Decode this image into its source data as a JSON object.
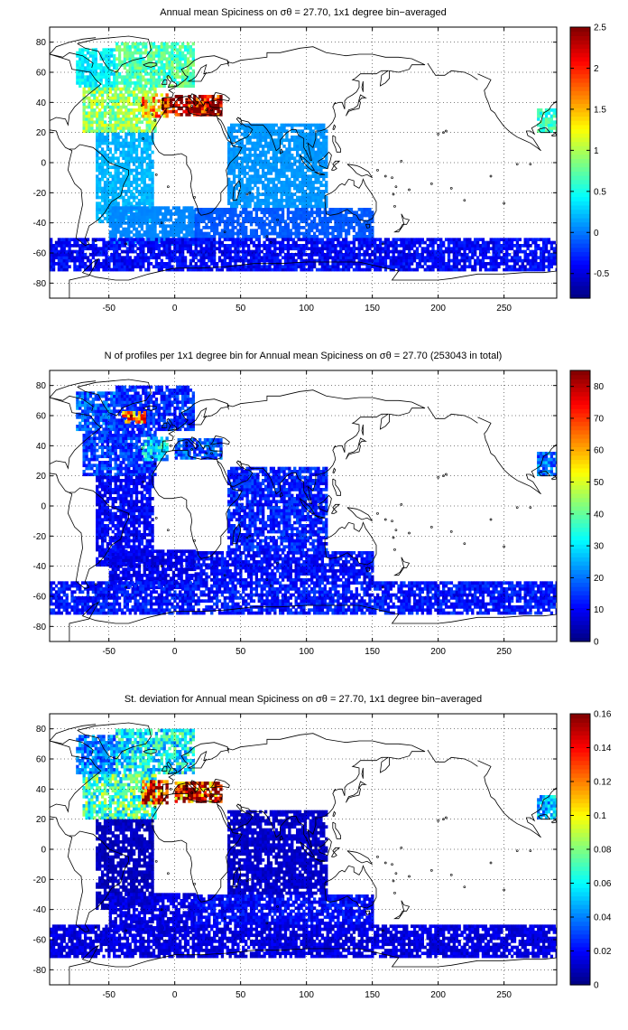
{
  "chart_data": [
    {
      "type": "heatmap",
      "title": "Annual mean Spiciness on σθ = 27.70, 1x1 degree bin−averaged",
      "xlabel": "",
      "ylabel": "",
      "xlim": [
        -95,
        290
      ],
      "ylim": [
        -90,
        90
      ],
      "xticks": [
        -50,
        0,
        50,
        100,
        150,
        200,
        250
      ],
      "yticks": [
        -80,
        -60,
        -40,
        -20,
        0,
        20,
        40,
        60,
        80
      ],
      "grid": true,
      "colorbar": {
        "range": [
          -0.8,
          2.5
        ],
        "ticks": [
          -0.5,
          0,
          0.5,
          1,
          1.5,
          2,
          2.5
        ],
        "colormap": "jet"
      },
      "field": [
        {
          "lon_min": -75,
          "lon_max": -45,
          "lat_min": 50,
          "lat_max": 75,
          "value": 0.4
        },
        {
          "lon_min": -45,
          "lon_max": 15,
          "lat_min": 50,
          "lat_max": 80,
          "value": 0.7
        },
        {
          "lon_min": -70,
          "lon_max": -15,
          "lat_min": 20,
          "lat_max": 50,
          "value": 0.9
        },
        {
          "lon_min": -25,
          "lon_max": -5,
          "lat_min": 30,
          "lat_max": 45,
          "value": 1.5
        },
        {
          "lon_min": -10,
          "lon_max": 0,
          "lat_min": 33,
          "lat_max": 42,
          "value": 2.3
        },
        {
          "lon_min": 0,
          "lon_max": 36,
          "lat_min": 31,
          "lat_max": 44,
          "value": 2.5
        },
        {
          "lon_min": -60,
          "lon_max": -17,
          "lat_min": -40,
          "lat_max": 20,
          "value": 0.2
        },
        {
          "lon_min": -50,
          "lon_max": 15,
          "lat_min": -55,
          "lat_max": -30,
          "value": 0.05
        },
        {
          "lon_min": 40,
          "lon_max": 115,
          "lat_min": -30,
          "lat_max": 25,
          "value": 0.1
        },
        {
          "lon_min": 15,
          "lon_max": 150,
          "lat_min": -50,
          "lat_max": -30,
          "value": -0.1
        },
        {
          "lon_min": -95,
          "lon_max": 290,
          "lat_min": -72,
          "lat_max": -50,
          "value": -0.4
        },
        {
          "lon_min": 275,
          "lon_max": 290,
          "lat_min": 20,
          "lat_max": 35,
          "value": 0.6
        }
      ]
    },
    {
      "type": "heatmap",
      "title": "N of profiles per 1x1 degree bin for Annual mean Spiciness on σθ = 27.70 (253043 in total)",
      "xlabel": "",
      "ylabel": "",
      "xlim": [
        -95,
        290
      ],
      "ylim": [
        -90,
        90
      ],
      "xticks": [
        -50,
        0,
        50,
        100,
        150,
        200,
        250
      ],
      "yticks": [
        -80,
        -60,
        -40,
        -20,
        0,
        20,
        40,
        60,
        80
      ],
      "grid": true,
      "colorbar": {
        "range": [
          0,
          85
        ],
        "ticks": [
          0,
          10,
          20,
          30,
          40,
          50,
          60,
          70,
          80
        ],
        "colormap": "jet"
      },
      "field": [
        {
          "lon_min": -75,
          "lon_max": -45,
          "lat_min": 50,
          "lat_max": 75,
          "value": 18
        },
        {
          "lon_min": -45,
          "lon_max": 15,
          "lat_min": 50,
          "lat_max": 80,
          "value": 14
        },
        {
          "lon_min": -40,
          "lon_max": -22,
          "lat_min": 55,
          "lat_max": 63,
          "value": 62
        },
        {
          "lon_min": -70,
          "lon_max": -15,
          "lat_min": 20,
          "lat_max": 50,
          "value": 15
        },
        {
          "lon_min": -25,
          "lon_max": -5,
          "lat_min": 30,
          "lat_max": 45,
          "value": 28
        },
        {
          "lon_min": 0,
          "lon_max": 36,
          "lat_min": 31,
          "lat_max": 44,
          "value": 18
        },
        {
          "lon_min": -60,
          "lon_max": -17,
          "lat_min": -40,
          "lat_max": 20,
          "value": 10
        },
        {
          "lon_min": -50,
          "lon_max": 15,
          "lat_min": -55,
          "lat_max": -30,
          "value": 9
        },
        {
          "lon_min": 40,
          "lon_max": 115,
          "lat_min": -30,
          "lat_max": 25,
          "value": 13
        },
        {
          "lon_min": 15,
          "lon_max": 150,
          "lat_min": -50,
          "lat_max": -30,
          "value": 11
        },
        {
          "lon_min": -95,
          "lon_max": 290,
          "lat_min": -72,
          "lat_max": -50,
          "value": 12
        },
        {
          "lon_min": 275,
          "lon_max": 290,
          "lat_min": 20,
          "lat_max": 35,
          "value": 20
        }
      ]
    },
    {
      "type": "heatmap",
      "title": "St. deviation for Annual mean Spiciness on σθ = 27.70, 1x1 degree bin−averaged",
      "xlabel": "",
      "ylabel": "",
      "xlim": [
        -95,
        290
      ],
      "ylim": [
        -90,
        90
      ],
      "xticks": [
        -50,
        0,
        50,
        100,
        150,
        200,
        250
      ],
      "yticks": [
        -80,
        -60,
        -40,
        -20,
        0,
        20,
        40,
        60,
        80
      ],
      "grid": true,
      "colorbar": {
        "range": [
          0,
          0.16
        ],
        "ticks": [
          0,
          0.02,
          0.04,
          0.06,
          0.08,
          0.1,
          0.12,
          0.14,
          0.16
        ],
        "colormap": "jet"
      },
      "field": [
        {
          "lon_min": -75,
          "lon_max": -45,
          "lat_min": 50,
          "lat_max": 75,
          "value": 0.04
        },
        {
          "lon_min": -45,
          "lon_max": 15,
          "lat_min": 50,
          "lat_max": 80,
          "value": 0.06
        },
        {
          "lon_min": -70,
          "lon_max": -15,
          "lat_min": 20,
          "lat_max": 50,
          "value": 0.07
        },
        {
          "lon_min": -25,
          "lon_max": -5,
          "lat_min": 30,
          "lat_max": 45,
          "value": 0.15
        },
        {
          "lon_min": 0,
          "lon_max": 36,
          "lat_min": 31,
          "lat_max": 44,
          "value": 0.15
        },
        {
          "lon_min": -60,
          "lon_max": -17,
          "lat_min": -40,
          "lat_max": 20,
          "value": 0.01
        },
        {
          "lon_min": -50,
          "lon_max": 15,
          "lat_min": -55,
          "lat_max": -30,
          "value": 0.015
        },
        {
          "lon_min": 40,
          "lon_max": 115,
          "lat_min": -30,
          "lat_max": 25,
          "value": 0.012
        },
        {
          "lon_min": 15,
          "lon_max": 150,
          "lat_min": -50,
          "lat_max": -30,
          "value": 0.02
        },
        {
          "lon_min": -95,
          "lon_max": 290,
          "lat_min": -72,
          "lat_max": -50,
          "value": 0.015
        },
        {
          "lon_min": 275,
          "lon_max": 290,
          "lat_min": 20,
          "lat_max": 35,
          "value": 0.05
        }
      ]
    }
  ]
}
